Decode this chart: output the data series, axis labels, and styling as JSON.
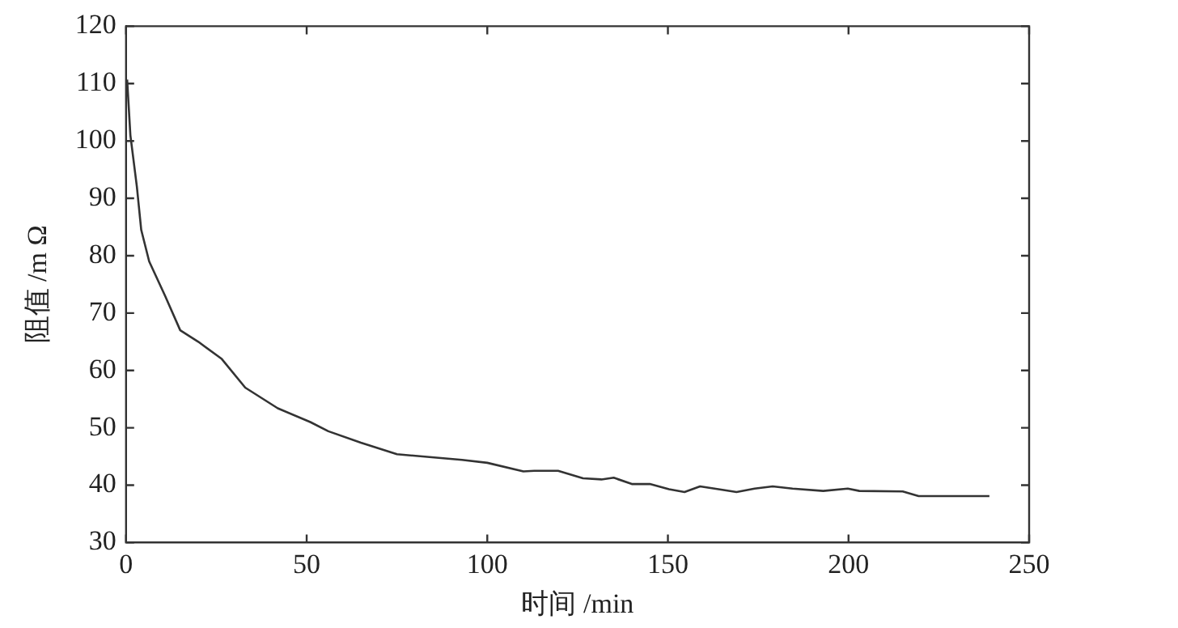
{
  "chart_data": {
    "type": "line",
    "xlabel": "时间 /min",
    "ylabel": "阻值 /m Ω",
    "xlim": [
      0,
      250
    ],
    "xticks": [
      0,
      50,
      100,
      150,
      200,
      250
    ],
    "ylim": [
      30,
      120
    ],
    "yticks": [
      30,
      40,
      50,
      60,
      70,
      80,
      90,
      100,
      110,
      120
    ],
    "marker": "none",
    "line_style": "solid",
    "series": [
      {
        "color": "#333333",
        "x": [
          0.3,
          1.2,
          3,
          4.2,
          6.4,
          10.8,
          15,
          20,
          26.5,
          33,
          42,
          51,
          56,
          65,
          75,
          84,
          93,
          100,
          110,
          113,
          119.6,
          126.5,
          131.6,
          135,
          140,
          145,
          150.3,
          154.6,
          158.9,
          164,
          169,
          174,
          179,
          184.5,
          193,
          199.8,
          203,
          215,
          219.4,
          239
        ],
        "values": [
          110.7,
          101,
          92,
          84.5,
          79,
          73,
          67,
          65,
          62,
          57,
          53.4,
          51,
          49.4,
          47.4,
          45.4,
          44.9,
          44.4,
          43.9,
          42.4,
          42.5,
          42.5,
          41.2,
          41,
          41.3,
          40.2,
          40.2,
          39.3,
          38.8,
          39.8,
          39.3,
          38.8,
          39.4,
          39.8,
          39.4,
          39,
          39.4,
          39,
          38.9,
          38.1,
          38.1
        ]
      }
    ]
  }
}
